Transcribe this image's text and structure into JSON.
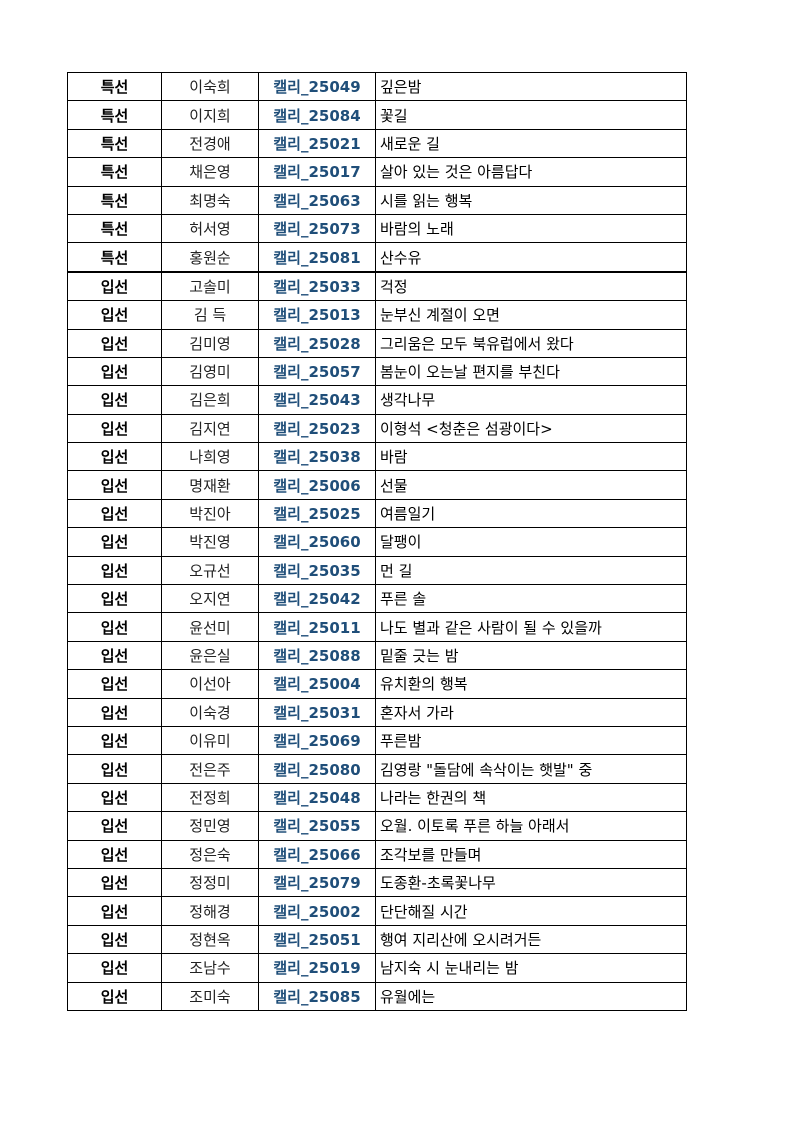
{
  "colors": {
    "code_text": "#1f4e79",
    "border": "#000000"
  },
  "rows": [
    {
      "award": "특선",
      "name": "이숙희",
      "code": "캘리_25049",
      "title": "깊은밤"
    },
    {
      "award": "특선",
      "name": "이지희",
      "code": "캘리_25084",
      "title": "꽃길"
    },
    {
      "award": "특선",
      "name": "전경애",
      "code": "캘리_25021",
      "title": "새로운 길"
    },
    {
      "award": "특선",
      "name": "채은영",
      "code": "캘리_25017",
      "title": "살아 있는 것은 아름답다"
    },
    {
      "award": "특선",
      "name": "최명숙",
      "code": "캘리_25063",
      "title": "시를 읽는 행복"
    },
    {
      "award": "특선",
      "name": "허서영",
      "code": "캘리_25073",
      "title": "바람의 노래"
    },
    {
      "award": "특선",
      "name": "홍원순",
      "code": "캘리_25081",
      "title": "산수유"
    },
    {
      "award": "입선",
      "name": "고솔미",
      "code": "캘리_25033",
      "title": "걱정"
    },
    {
      "award": "입선",
      "name": "김 득",
      "code": "캘리_25013",
      "title": "눈부신 계절이 오면"
    },
    {
      "award": "입선",
      "name": "김미영",
      "code": "캘리_25028",
      "title": "그리움은 모두 북유럽에서 왔다"
    },
    {
      "award": "입선",
      "name": "김영미",
      "code": "캘리_25057",
      "title": "봄눈이 오는날 편지를 부친다"
    },
    {
      "award": "입선",
      "name": "김은희",
      "code": "캘리_25043",
      "title": "생각나무"
    },
    {
      "award": "입선",
      "name": "김지연",
      "code": "캘리_25023",
      "title": "이형석 <청춘은 섬광이다>"
    },
    {
      "award": "입선",
      "name": "나희영",
      "code": "캘리_25038",
      "title": "바람"
    },
    {
      "award": "입선",
      "name": "명재환",
      "code": "캘리_25006",
      "title": "선물"
    },
    {
      "award": "입선",
      "name": "박진아",
      "code": "캘리_25025",
      "title": "여름일기"
    },
    {
      "award": "입선",
      "name": "박진영",
      "code": "캘리_25060",
      "title": "달팽이"
    },
    {
      "award": "입선",
      "name": "오규선",
      "code": "캘리_25035",
      "title": "먼 길"
    },
    {
      "award": "입선",
      "name": "오지연",
      "code": "캘리_25042",
      "title": "푸른 솔"
    },
    {
      "award": "입선",
      "name": "윤선미",
      "code": "캘리_25011",
      "title": "나도 별과 같은 사람이 될 수 있을까"
    },
    {
      "award": "입선",
      "name": "윤은실",
      "code": "캘리_25088",
      "title": "밑줄 긋는 밤"
    },
    {
      "award": "입선",
      "name": "이선아",
      "code": "캘리_25004",
      "title": "유치환의 행복"
    },
    {
      "award": "입선",
      "name": "이숙경",
      "code": "캘리_25031",
      "title": "혼자서 가라"
    },
    {
      "award": "입선",
      "name": "이유미",
      "code": "캘리_25069",
      "title": "푸른밤"
    },
    {
      "award": "입선",
      "name": "전은주",
      "code": "캘리_25080",
      "title": "김영랑 \"돌담에 속삭이는 햇발\" 중"
    },
    {
      "award": "입선",
      "name": "전정희",
      "code": "캘리_25048",
      "title": "나라는 한권의 책"
    },
    {
      "award": "입선",
      "name": "정민영",
      "code": "캘리_25055",
      "title": "오월. 이토록 푸른 하늘 아래서"
    },
    {
      "award": "입선",
      "name": "정은숙",
      "code": "캘리_25066",
      "title": "조각보를 만들며"
    },
    {
      "award": "입선",
      "name": "정정미",
      "code": "캘리_25079",
      "title": "도종환-초록꽃나무"
    },
    {
      "award": "입선",
      "name": "정해경",
      "code": "캘리_25002",
      "title": "단단해질 시간"
    },
    {
      "award": "입선",
      "name": "정현옥",
      "code": "캘리_25051",
      "title": "행여 지리산에 오시려거든"
    },
    {
      "award": "입선",
      "name": "조남수",
      "code": "캘리_25019",
      "title": "남지숙 시 눈내리는 밤"
    },
    {
      "award": "입선",
      "name": "조미숙",
      "code": "캘리_25085",
      "title": "유월에는"
    }
  ]
}
